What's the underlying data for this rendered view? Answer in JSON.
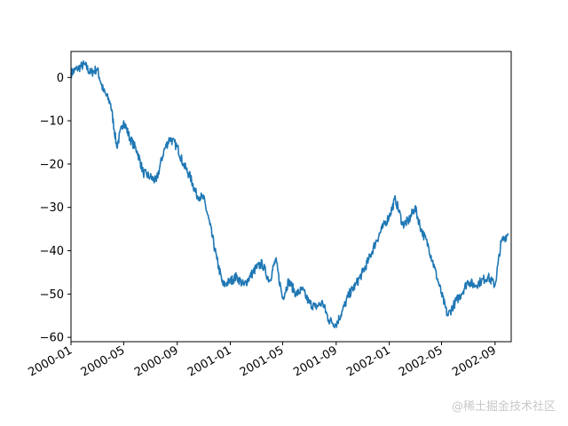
{
  "chart_data": {
    "type": "line",
    "title": "",
    "xlabel": "",
    "ylabel": "",
    "x_type": "date",
    "xlim": [
      "2000-01-01",
      "2002-10-08"
    ],
    "ylim": [
      -61,
      6
    ],
    "grid": false,
    "x_ticks": [
      "2000-01",
      "2000-05",
      "2000-09",
      "2001-01",
      "2001-05",
      "2001-09",
      "2002-01",
      "2002-05",
      "2002-09"
    ],
    "y_ticks": [
      0,
      -10,
      -20,
      -30,
      -40,
      -50,
      -60
    ],
    "y_tick_labels": [
      "0",
      "−10",
      "−20",
      "−30",
      "−40",
      "−50",
      "−60"
    ],
    "series": [
      {
        "color": "#1f77b4",
        "x": [
          "2000-01-01",
          "2000-01-15",
          "2000-02-01",
          "2000-02-15",
          "2000-03-01",
          "2000-03-15",
          "2000-04-01",
          "2000-04-15",
          "2000-05-01",
          "2000-05-15",
          "2000-06-01",
          "2000-06-15",
          "2000-07-01",
          "2000-07-15",
          "2000-08-01",
          "2000-08-15",
          "2000-09-01",
          "2000-09-15",
          "2000-10-01",
          "2000-10-15",
          "2000-11-01",
          "2000-11-15",
          "2000-12-01",
          "2000-12-15",
          "2001-01-01",
          "2001-01-15",
          "2001-02-01",
          "2001-02-15",
          "2001-03-01",
          "2001-03-15",
          "2001-04-01",
          "2001-04-15",
          "2001-05-01",
          "2001-05-15",
          "2001-06-01",
          "2001-06-15",
          "2001-07-01",
          "2001-07-15",
          "2001-08-01",
          "2001-08-15",
          "2001-09-01",
          "2001-09-15",
          "2001-10-01",
          "2001-10-15",
          "2001-11-01",
          "2001-11-15",
          "2001-12-01",
          "2001-12-15",
          "2002-01-01",
          "2002-01-15",
          "2002-02-01",
          "2002-02-15",
          "2002-03-01",
          "2002-03-15",
          "2002-04-01",
          "2002-04-15",
          "2002-05-01",
          "2002-05-15",
          "2002-06-01",
          "2002-06-15",
          "2002-07-01",
          "2002-07-15",
          "2002-08-01",
          "2002-08-15",
          "2002-09-01",
          "2002-09-15",
          "2002-10-01"
        ],
        "values": [
          1,
          2,
          3,
          1,
          2,
          -3,
          -6,
          -16,
          -10,
          -14,
          -17,
          -22,
          -23,
          -24,
          -17,
          -14,
          -16,
          -20,
          -23,
          -27,
          -28,
          -34,
          -42,
          -48,
          -47,
          -46,
          -48,
          -46,
          -44,
          -43,
          -47,
          -42,
          -51,
          -47,
          -50,
          -49,
          -52,
          -53,
          -52,
          -56,
          -57,
          -54,
          -50,
          -48,
          -45,
          -42,
          -38,
          -35,
          -32,
          -28,
          -34,
          -33,
          -30,
          -35,
          -39,
          -44,
          -50,
          -55,
          -52,
          -50,
          -47,
          -48,
          -47,
          -46,
          -48,
          -38,
          -36
        ]
      }
    ]
  },
  "watermark": "@稀土掘金技术社区"
}
